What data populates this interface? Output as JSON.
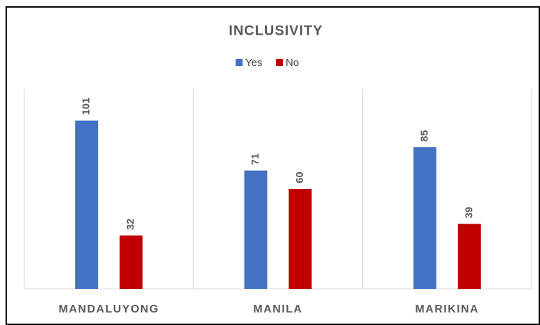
{
  "chart_data": {
    "type": "bar",
    "title": "INCLUSIVITY",
    "categories": [
      "MANDALUYONG",
      "MANILA",
      "MARIKINA"
    ],
    "series": [
      {
        "name": "Yes",
        "color": "#4472c4",
        "values": [
          101,
          71,
          85
        ]
      },
      {
        "name": "No",
        "color": "#c00000",
        "values": [
          32,
          60,
          39
        ]
      }
    ],
    "ylim": [
      0,
      120
    ],
    "legend": "top"
  }
}
